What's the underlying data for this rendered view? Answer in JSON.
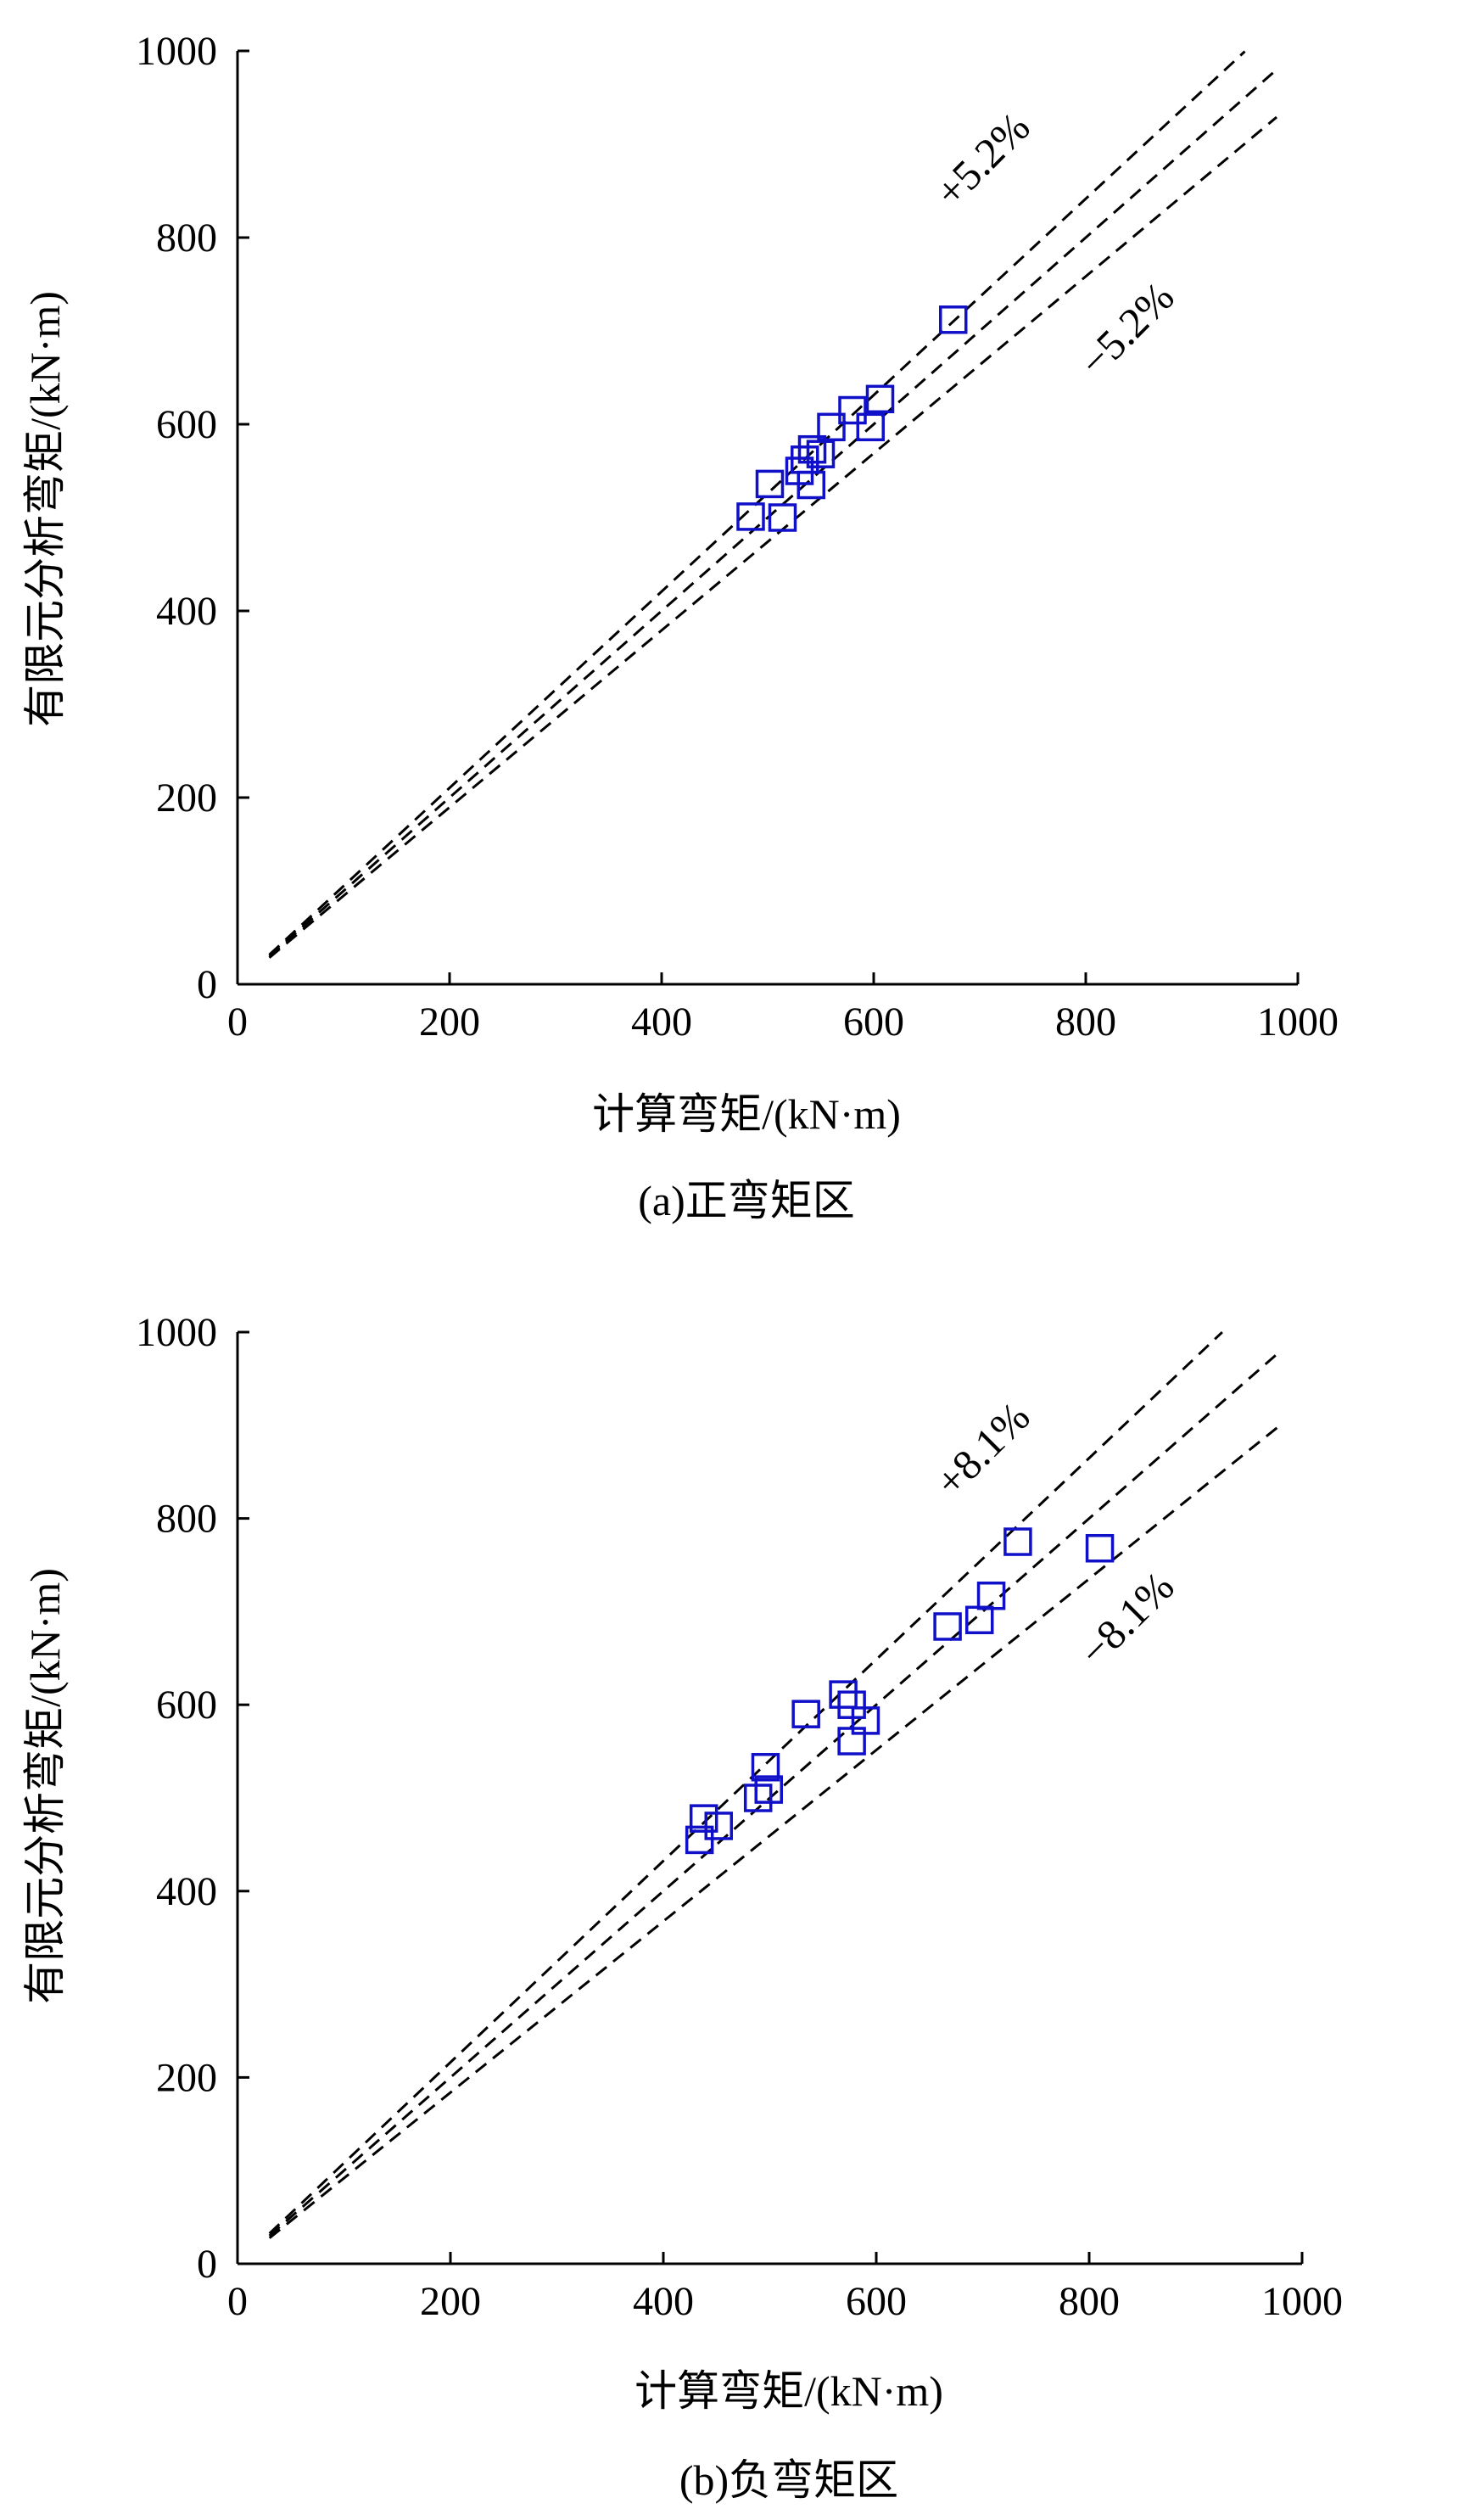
{
  "colors": {
    "marker": "#1010c8",
    "axis": "#000000",
    "reference_line": "#000000"
  },
  "chart_data": [
    {
      "type": "scatter",
      "caption": "(a)正弯矩区",
      "xlabel": "计算弯矩/(kN·m)",
      "ylabel": "有限元分析弯矩/(kN·m)",
      "xlim": [
        0,
        1000
      ],
      "ylim": [
        0,
        1000
      ],
      "x_ticks": [
        "0",
        "200",
        "400",
        "600",
        "800",
        "1000"
      ],
      "y_ticks": [
        "0",
        "200",
        "400",
        "600",
        "800",
        "1000"
      ],
      "grid": false,
      "marker": "open-square",
      "points": [
        {
          "x": 675,
          "y": 712
        },
        {
          "x": 606,
          "y": 627
        },
        {
          "x": 597,
          "y": 597
        },
        {
          "x": 580,
          "y": 615
        },
        {
          "x": 560,
          "y": 597
        },
        {
          "x": 550,
          "y": 568
        },
        {
          "x": 542,
          "y": 573
        },
        {
          "x": 535,
          "y": 562
        },
        {
          "x": 530,
          "y": 550
        },
        {
          "x": 541,
          "y": 535
        },
        {
          "x": 502,
          "y": 536
        },
        {
          "x": 484,
          "y": 501
        },
        {
          "x": 514,
          "y": 500
        }
      ],
      "reference_lines": [
        {
          "label": "+5.2%",
          "slope": 1.052,
          "x_range": [
            30,
            950
          ]
        },
        {
          "label": "",
          "slope": 1.0,
          "x_range": [
            30,
            980
          ]
        },
        {
          "label": "−5.2%",
          "slope": 0.948,
          "x_range": [
            30,
            980
          ]
        }
      ]
    },
    {
      "type": "scatter",
      "caption": "(b)负弯矩区",
      "xlabel": "计算弯矩/(kN·m)",
      "ylabel": "有限元分析弯矩/(kN·m)",
      "xlim": [
        0,
        1000
      ],
      "ylim": [
        0,
        1000
      ],
      "x_ticks": [
        "0",
        "200",
        "400",
        "600",
        "800",
        "1000"
      ],
      "y_ticks": [
        "0",
        "200",
        "400",
        "600",
        "800",
        "1000"
      ],
      "grid": false,
      "marker": "open-square",
      "points": [
        {
          "x": 733,
          "y": 775
        },
        {
          "x": 810,
          "y": 768
        },
        {
          "x": 708,
          "y": 717
        },
        {
          "x": 697,
          "y": 691
        },
        {
          "x": 667,
          "y": 684
        },
        {
          "x": 569,
          "y": 611
        },
        {
          "x": 577,
          "y": 600
        },
        {
          "x": 590,
          "y": 583
        },
        {
          "x": 577,
          "y": 561
        },
        {
          "x": 534,
          "y": 590
        },
        {
          "x": 496,
          "y": 533
        },
        {
          "x": 499,
          "y": 509
        },
        {
          "x": 489,
          "y": 500
        },
        {
          "x": 438,
          "y": 478
        },
        {
          "x": 452,
          "y": 470
        },
        {
          "x": 434,
          "y": 455
        }
      ],
      "reference_lines": [
        {
          "label": "+8.1%",
          "slope": 1.081,
          "x_range": [
            30,
            925
          ]
        },
        {
          "label": "",
          "slope": 1.0,
          "x_range": [
            30,
            980
          ]
        },
        {
          "label": "−8.1%",
          "slope": 0.919,
          "x_range": [
            30,
            980
          ]
        }
      ]
    }
  ]
}
